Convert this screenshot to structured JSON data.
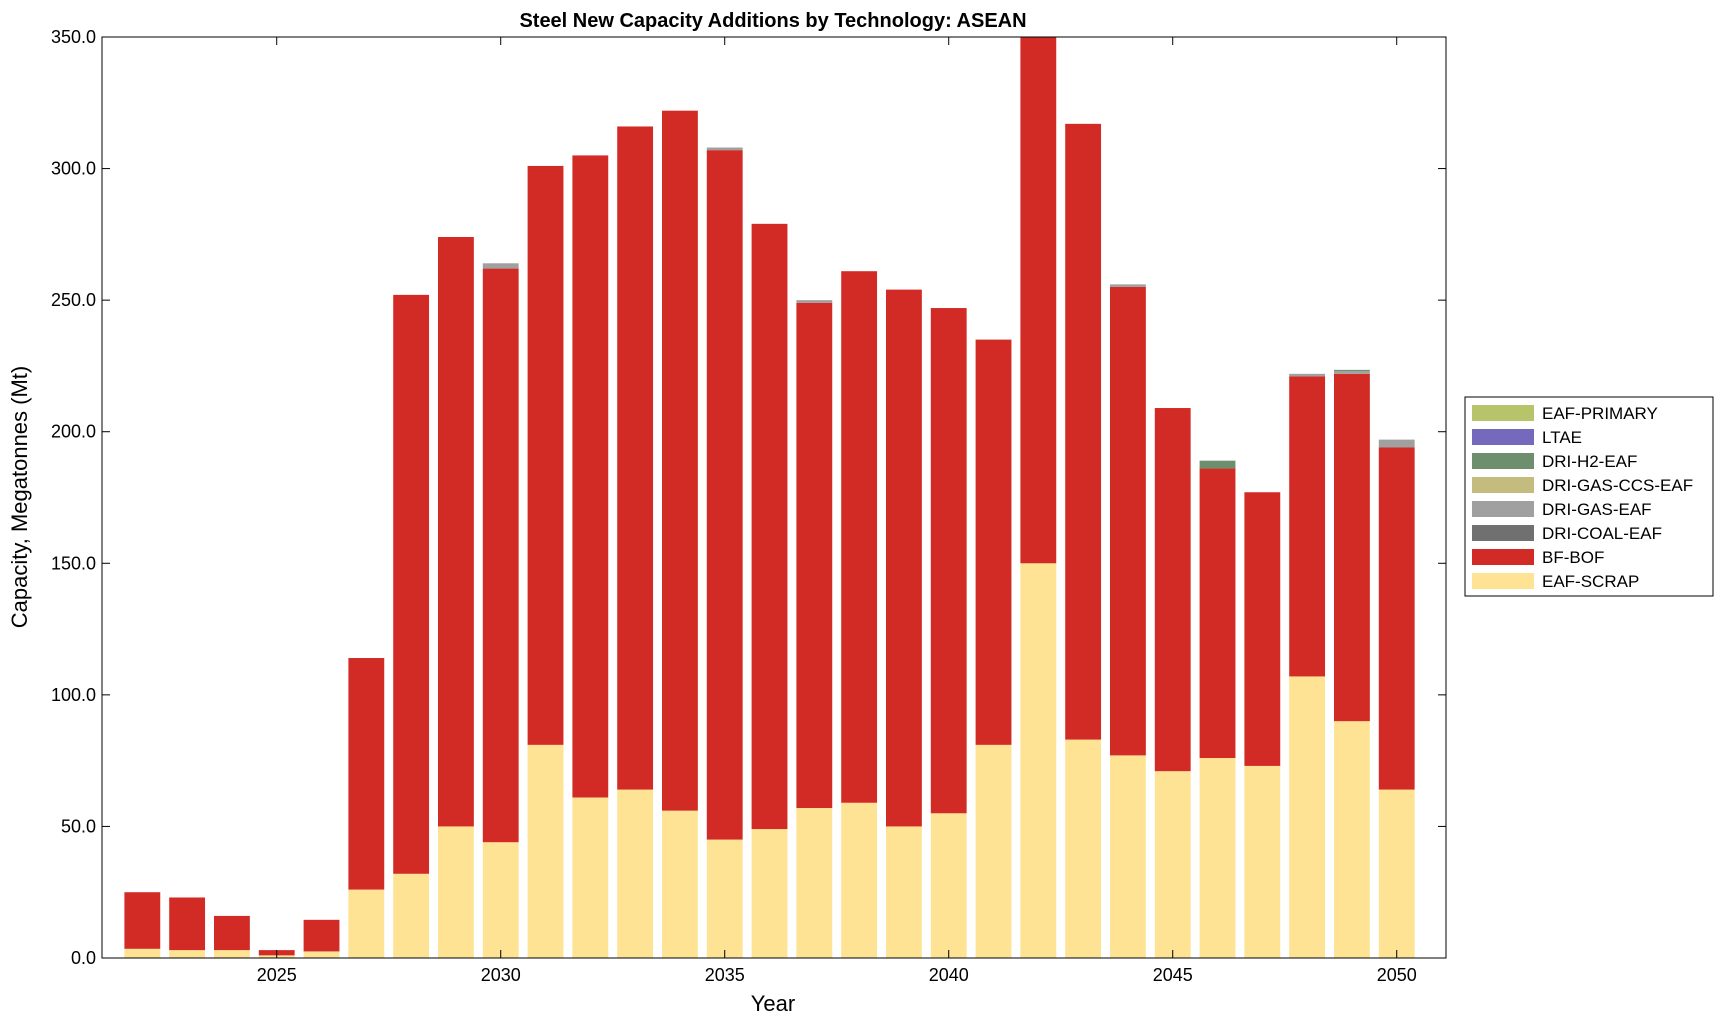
{
  "chart_data": {
    "type": "bar",
    "stacked": true,
    "title": "Steel New Capacity Additions by Technology: ASEAN",
    "xlabel": "Year",
    "ylabel": "Capacity, Megatonnes (Mt)",
    "ylim": [
      0,
      350
    ],
    "xlim": [
      2021.1,
      2051.1
    ],
    "yticks": [
      0,
      50,
      100,
      150,
      200,
      250,
      300,
      350
    ],
    "ytick_labels": [
      "0.0",
      "50.0",
      "100.0",
      "150.0",
      "200.0",
      "250.0",
      "300.0",
      "350.0"
    ],
    "xticks": [
      2025,
      2030,
      2035,
      2040,
      2045,
      2050
    ],
    "xtick_labels": [
      "2025",
      "2030",
      "2035",
      "2040",
      "2045",
      "2050"
    ],
    "legend_position": "right",
    "x": [
      2022,
      2023,
      2024,
      2025,
      2026,
      2027,
      2028,
      2029,
      2030,
      2031,
      2032,
      2033,
      2034,
      2035,
      2036,
      2037,
      2038,
      2039,
      2040,
      2041,
      2042,
      2043,
      2044,
      2045,
      2046,
      2047,
      2048,
      2049,
      2050
    ],
    "series": [
      {
        "name": "EAF-SCRAP",
        "color": "#fde393",
        "values": [
          3.5,
          3,
          3,
          1,
          2.5,
          26,
          32,
          50,
          44,
          81,
          61,
          64,
          56,
          45,
          49,
          57,
          59,
          50,
          55,
          81,
          150,
          83,
          77,
          71,
          76,
          73,
          107,
          90,
          64
        ]
      },
      {
        "name": "BF-BOF",
        "color": "#d22b26",
        "values": [
          21.5,
          20,
          13,
          2,
          12,
          88,
          220,
          224,
          218,
          220,
          244,
          252,
          266,
          262,
          230,
          192,
          202,
          204,
          192,
          154,
          200,
          234,
          178,
          138,
          110,
          104,
          114,
          132,
          130
        ]
      },
      {
        "name": "DRI-COAL-EAF",
        "color": "#707070",
        "values": [
          0,
          0,
          0,
          0,
          0,
          0,
          0,
          0,
          0,
          0,
          0,
          0,
          0,
          0,
          0,
          0,
          0,
          0,
          0,
          0,
          0,
          0,
          0,
          0,
          0,
          0,
          0,
          0,
          0
        ]
      },
      {
        "name": "DRI-GAS-EAF",
        "color": "#a0a0a0",
        "values": [
          0,
          0,
          0,
          0,
          0,
          0,
          0,
          0,
          2,
          0,
          0,
          0,
          0,
          1,
          0,
          1,
          0,
          0,
          0,
          0,
          0,
          0,
          1,
          0,
          0,
          0,
          1,
          1,
          3
        ]
      },
      {
        "name": "DRI-GAS-CCS-EAF",
        "color": "#c4bb7e",
        "values": [
          0,
          0,
          0,
          0,
          0,
          0,
          0,
          0,
          0,
          0,
          0,
          0,
          0,
          0,
          0,
          0,
          0,
          0,
          0,
          0,
          0,
          0,
          0,
          0,
          0,
          0,
          0,
          0,
          0
        ]
      },
      {
        "name": "DRI-H2-EAF",
        "color": "#6e8f6e",
        "values": [
          0,
          0,
          0,
          0,
          0,
          0,
          0,
          0,
          0,
          0,
          0,
          0,
          0,
          0,
          0,
          0,
          0,
          0,
          0,
          0,
          0,
          0,
          0,
          0,
          3,
          0,
          0,
          0.5,
          0
        ]
      },
      {
        "name": "LTAE",
        "color": "#7569bd",
        "values": [
          0,
          0,
          0,
          0,
          0,
          0,
          0,
          0,
          0,
          0,
          0,
          0,
          0,
          0,
          0,
          0,
          0,
          0,
          0,
          0,
          0,
          0,
          0,
          0,
          0,
          0,
          0,
          0,
          0
        ]
      },
      {
        "name": "EAF-PRIMARY",
        "color": "#b8c46a",
        "values": [
          0,
          0,
          0,
          0,
          0,
          0,
          0,
          0,
          0,
          0,
          0,
          0,
          0,
          0,
          0,
          0,
          0,
          0,
          0,
          0,
          0,
          0,
          0,
          0,
          0,
          0,
          0,
          0,
          0
        ]
      }
    ]
  }
}
